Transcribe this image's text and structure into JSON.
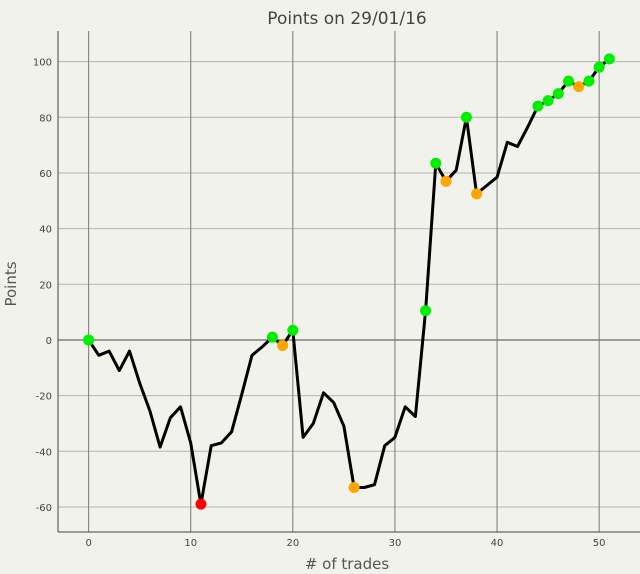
{
  "chart_data": {
    "type": "line",
    "title": "Points on 29/01/16",
    "xlabel": "# of trades",
    "ylabel": "Points",
    "xlim": [
      -3,
      54
    ],
    "ylim": [
      -69,
      111
    ],
    "grid": true,
    "x_ticks": [
      0,
      10,
      20,
      30,
      40,
      50
    ],
    "y_ticks": [
      -60,
      -40,
      -20,
      0,
      20,
      40,
      60,
      80,
      100
    ],
    "line_color": "#000000",
    "series": [
      {
        "x": [
          0,
          1,
          2,
          3,
          4,
          5,
          6,
          7,
          8,
          9,
          10,
          11,
          12,
          13,
          14,
          15,
          16,
          17,
          18,
          19,
          20,
          21,
          22,
          23,
          24,
          25,
          26,
          27,
          28,
          29,
          30,
          31,
          32,
          33,
          34,
          35,
          36,
          37,
          38,
          39,
          40,
          41,
          42,
          43,
          44,
          45,
          46,
          47,
          48,
          49,
          50,
          51
        ],
        "values": [
          0,
          -5.5,
          -4,
          -11,
          -4,
          -15.5,
          -25.5,
          -38.5,
          -28,
          -24,
          -37,
          -59,
          -38,
          -37,
          -33,
          -19.5,
          -5.5,
          -2.5,
          1,
          -2,
          3.5,
          -35,
          -30,
          -19,
          -22.5,
          -31,
          -53,
          -53,
          -52,
          -38,
          -35,
          -24,
          -27.5,
          10.5,
          63.5,
          57,
          61,
          80,
          52.5,
          55.5,
          58.5,
          71,
          69.5,
          76.5,
          84,
          86,
          88.5,
          93,
          91,
          93,
          98,
          101
        ]
      }
    ],
    "markers": [
      {
        "x": 0,
        "y": 0,
        "color": "#00ee00"
      },
      {
        "x": 11,
        "y": -59,
        "color": "#ff0000"
      },
      {
        "x": 18,
        "y": 1,
        "color": "#00ee00"
      },
      {
        "x": 19,
        "y": -2,
        "color": "#ffa500"
      },
      {
        "x": 20,
        "y": 3.5,
        "color": "#00ee00"
      },
      {
        "x": 26,
        "y": -53,
        "color": "#ffa500"
      },
      {
        "x": 33,
        "y": 10.5,
        "color": "#00ee00"
      },
      {
        "x": 34,
        "y": 63.5,
        "color": "#00ee00"
      },
      {
        "x": 35,
        "y": 57,
        "color": "#ffa500"
      },
      {
        "x": 37,
        "y": 80,
        "color": "#00ee00"
      },
      {
        "x": 38,
        "y": 52.5,
        "color": "#ffa500"
      },
      {
        "x": 44,
        "y": 84,
        "color": "#00ee00"
      },
      {
        "x": 45,
        "y": 86,
        "color": "#00ee00"
      },
      {
        "x": 46,
        "y": 88.5,
        "color": "#00ee00"
      },
      {
        "x": 47,
        "y": 93,
        "color": "#00ee00"
      },
      {
        "x": 48,
        "y": 91,
        "color": "#ffa500"
      },
      {
        "x": 49,
        "y": 93,
        "color": "#00ee00"
      },
      {
        "x": 50,
        "y": 98,
        "color": "#00ee00"
      },
      {
        "x": 51,
        "y": 101,
        "color": "#00ee00"
      }
    ]
  }
}
